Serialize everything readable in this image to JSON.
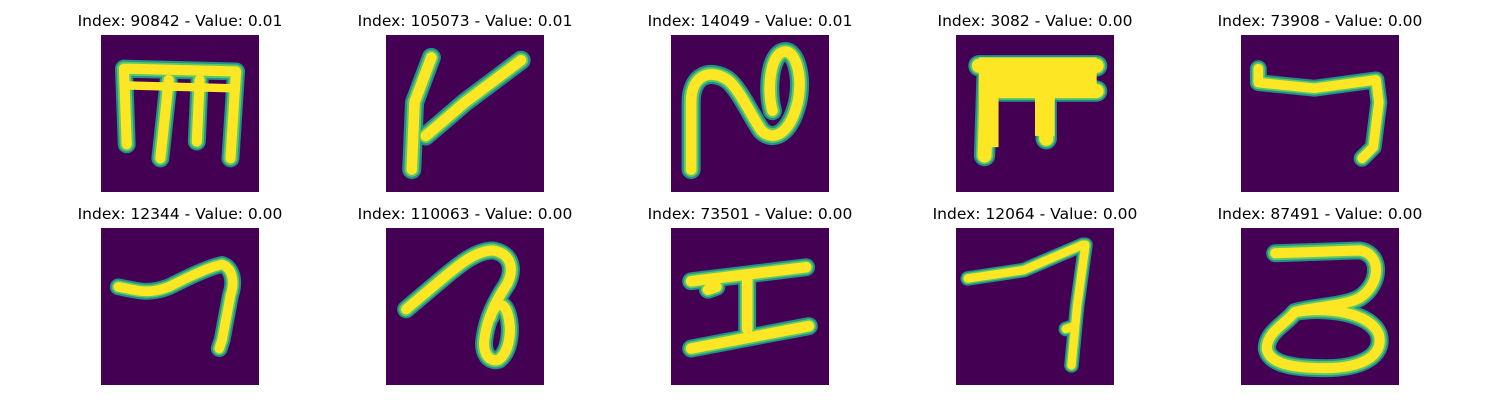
{
  "chart_data": {
    "type": "image-grid",
    "colormap": {
      "background": "#440154",
      "edge": "#21918c",
      "mid": "#5ec962",
      "stroke": "#fde725"
    },
    "panels": [
      {
        "title": "Index: 90842 - Value: 0.01",
        "index": 90842,
        "value": 0.01,
        "glyph": "glyph-m"
      },
      {
        "title": "Index: 105073 - Value: 0.01",
        "index": 105073,
        "value": 0.01,
        "glyph": "glyph-k"
      },
      {
        "title": "Index: 14049 - Value: 0.01",
        "index": 14049,
        "value": 0.01,
        "glyph": "glyph-n-loop"
      },
      {
        "title": "Index: 3082 - Value: 0.00",
        "index": 3082,
        "value": 0.0,
        "glyph": "glyph-pi"
      },
      {
        "title": "Index: 73908 - Value: 0.00",
        "index": 73908,
        "value": 0.0,
        "glyph": "glyph-hook"
      },
      {
        "title": "Index: 12344 - Value: 0.00",
        "index": 12344,
        "value": 0.0,
        "glyph": "glyph-seven-wave"
      },
      {
        "title": "Index: 110063 - Value: 0.00",
        "index": 110063,
        "value": 0.0,
        "glyph": "glyph-loop-tail"
      },
      {
        "title": "Index: 73501 - Value: 0.00",
        "index": 73501,
        "value": 0.0,
        "glyph": "glyph-i-beam"
      },
      {
        "title": "Index: 12064 - Value: 0.00",
        "index": 12064,
        "value": 0.0,
        "glyph": "glyph-seven"
      },
      {
        "title": "Index: 87491 - Value: 0.00",
        "index": 87491,
        "value": 0.0,
        "glyph": "glyph-three"
      }
    ]
  }
}
